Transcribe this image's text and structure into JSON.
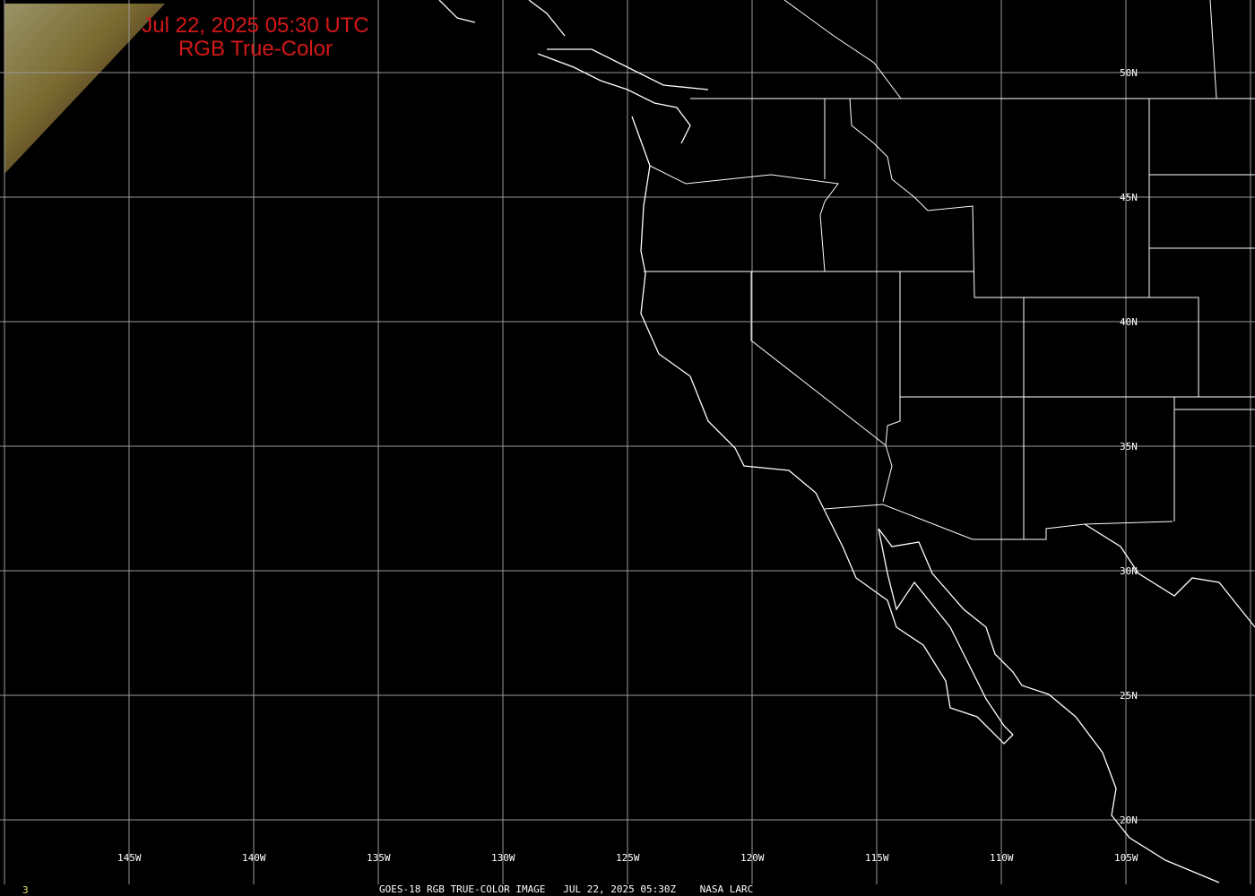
{
  "title": {
    "line1": "Jul 22, 2025 05:30 UTC",
    "line2": "RGB True-Color"
  },
  "footer": {
    "frame": "3",
    "caption": "GOES-18 RGB TRUE-COLOR IMAGE   JUL 22, 2025 05:30Z    NASA LARC"
  },
  "lat_labels": [
    "50N",
    "45N",
    "40N",
    "35N",
    "30N",
    "25N",
    "20N"
  ],
  "lon_labels": [
    "145W",
    "140W",
    "135W",
    "130W",
    "125W",
    "120W",
    "115W",
    "110W",
    "105W"
  ],
  "colors": {
    "title": "#d41818",
    "grid": "#9a9a9a",
    "borders": "#ffffff",
    "frame_number": "#e8e060"
  }
}
